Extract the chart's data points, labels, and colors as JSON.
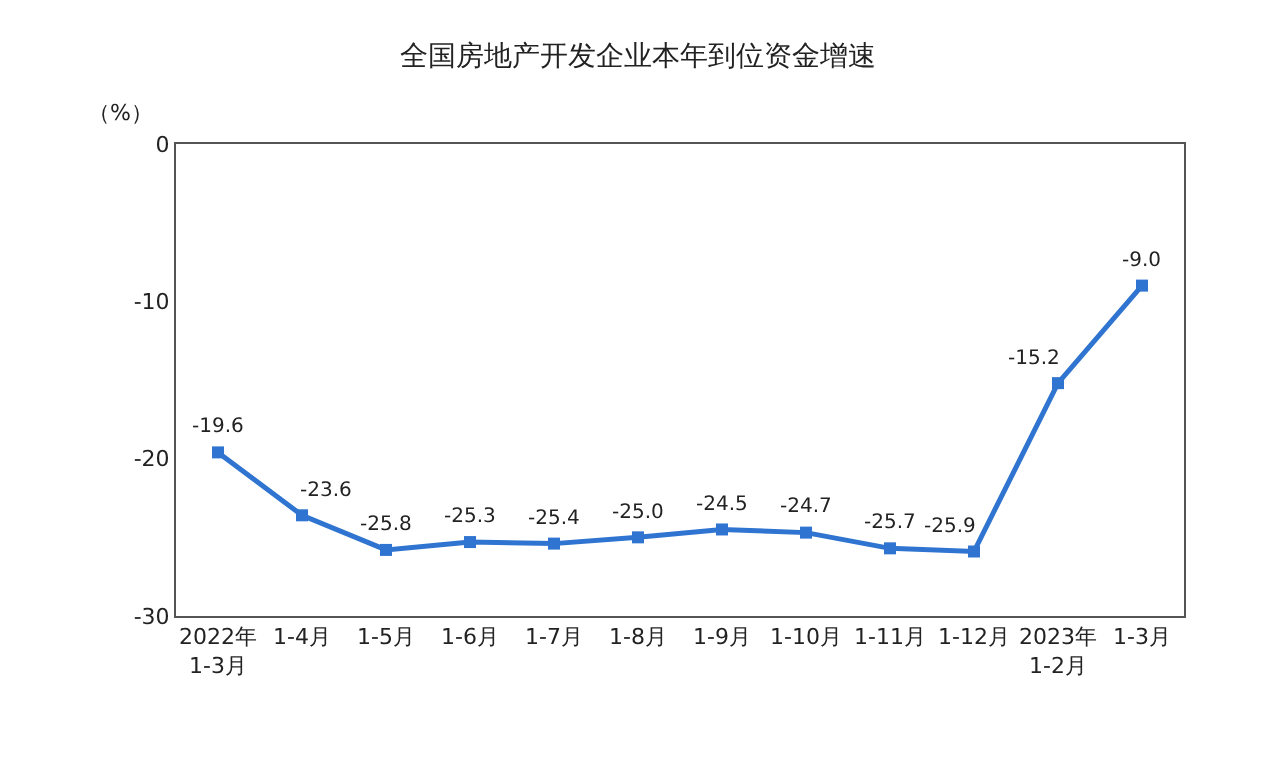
{
  "chart_data": {
    "type": "line",
    "title": "全国房地产开发企业本年到位资金增速",
    "ylabel": "（%）",
    "categories": [
      "2022年\n1-3月",
      "1-4月",
      "1-5月",
      "1-6月",
      "1-7月",
      "1-8月",
      "1-9月",
      "1-10月",
      "1-11月",
      "1-12月",
      "2023年\n1-2月",
      "1-3月"
    ],
    "series": [
      {
        "color": "#2f74d0",
        "values": [
          -19.6,
          -23.6,
          -25.8,
          -25.3,
          -25.4,
          -25.0,
          -24.5,
          -24.7,
          -25.7,
          -25.9,
          -15.2,
          -9.0
        ],
        "value_labels": [
          "-19.6",
          "-23.6",
          "-25.8",
          "-25.3",
          "-25.4",
          "-25.0",
          "-24.5",
          "-24.7",
          "-25.7",
          "-25.9",
          "-15.2",
          "-9.0"
        ]
      }
    ],
    "ylim": [
      -30,
      0
    ],
    "yticks": [
      -30,
      -20,
      -10,
      0
    ],
    "marker": "square",
    "line_style": "solid"
  }
}
